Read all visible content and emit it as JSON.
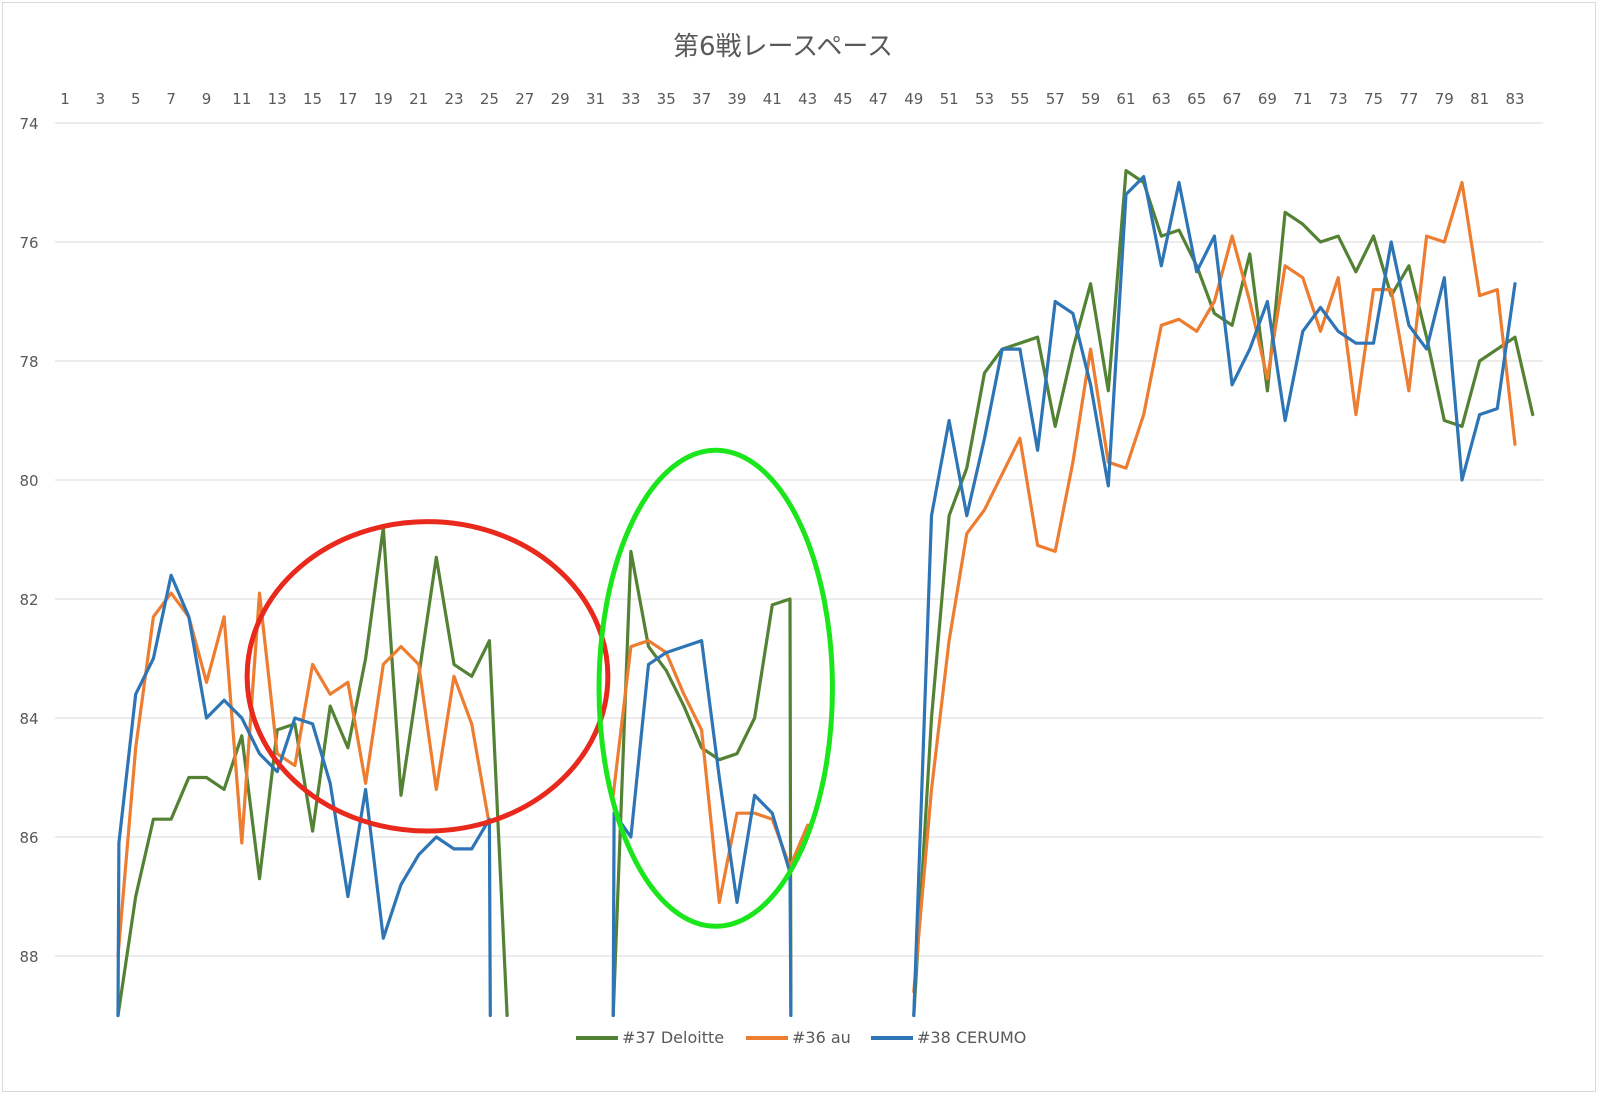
{
  "chart_data": {
    "type": "line",
    "title": "第6戦レースペース",
    "xlabel": "",
    "ylabel": "",
    "y_inverted": true,
    "x_axis_position": "top",
    "ylim": [
      74,
      89
    ],
    "yticks": [
      74,
      76,
      78,
      80,
      82,
      84,
      86,
      88
    ],
    "x": [
      1,
      84
    ],
    "xtick_labels": [
      "1",
      "3",
      "5",
      "7",
      "9",
      "11",
      "13",
      "15",
      "17",
      "19",
      "21",
      "23",
      "25",
      "27",
      "29",
      "31",
      "33",
      "35",
      "37",
      "39",
      "41",
      "43",
      "45",
      "47",
      "49",
      "51",
      "53",
      "55",
      "57",
      "59",
      "61",
      "63",
      "65",
      "67",
      "69",
      "71",
      "73",
      "75",
      "77",
      "79",
      "81",
      "83"
    ],
    "grid": true,
    "legend": "bottom",
    "series": [
      {
        "name": "#37 Deloitte",
        "color": "#548235",
        "segments": [
          [
            [
              4,
              89
            ],
            [
              5,
              87.0
            ],
            [
              6,
              85.7
            ],
            [
              7,
              85.7
            ],
            [
              8,
              85.0
            ],
            [
              9,
              85.0
            ],
            [
              10,
              85.2
            ],
            [
              11,
              84.3
            ],
            [
              12,
              86.7
            ],
            [
              13,
              84.2
            ],
            [
              14,
              84.1
            ],
            [
              15,
              85.9
            ],
            [
              16,
              83.8
            ],
            [
              17,
              84.5
            ],
            [
              18,
              83.0
            ],
            [
              19,
              80.8
            ],
            [
              20,
              85.3
            ],
            [
              21,
              83.3
            ],
            [
              22,
              81.3
            ],
            [
              23,
              83.1
            ],
            [
              24,
              83.3
            ],
            [
              25,
              82.7
            ],
            [
              26,
              89
            ]
          ],
          [
            [
              32,
              89
            ],
            [
              33,
              81.2
            ],
            [
              34,
              82.8
            ],
            [
              35,
              83.2
            ],
            [
              36,
              83.8
            ],
            [
              37,
              84.5
            ],
            [
              38,
              84.7
            ],
            [
              39,
              84.6
            ],
            [
              40,
              84.0
            ],
            [
              41,
              82.1
            ],
            [
              42,
              82.0
            ],
            [
              42.05,
              89
            ]
          ],
          [
            [
              49,
              89
            ],
            [
              50,
              84.0
            ],
            [
              51,
              80.6
            ],
            [
              52,
              79.8
            ],
            [
              53,
              78.2
            ],
            [
              54,
              77.8
            ],
            [
              55,
              77.7
            ],
            [
              56,
              77.6
            ],
            [
              57,
              79.1
            ],
            [
              58,
              77.8
            ],
            [
              59,
              76.7
            ],
            [
              60,
              78.5
            ],
            [
              61,
              74.8
            ],
            [
              62,
              75.0
            ],
            [
              63,
              75.9
            ],
            [
              64,
              75.8
            ],
            [
              65,
              76.4
            ],
            [
              66,
              77.2
            ],
            [
              67,
              77.4
            ],
            [
              68,
              76.2
            ],
            [
              69,
              78.5
            ],
            [
              70,
              75.5
            ],
            [
              71,
              75.7
            ],
            [
              72,
              76.0
            ],
            [
              73,
              75.9
            ],
            [
              74,
              76.5
            ],
            [
              75,
              75.9
            ],
            [
              76,
              76.9
            ],
            [
              77,
              76.4
            ],
            [
              78,
              77.6
            ],
            [
              79,
              79.0
            ],
            [
              80,
              79.1
            ],
            [
              81,
              78.0
            ],
            [
              82,
              77.8
            ],
            [
              83,
              77.6
            ],
            [
              84,
              78.9
            ]
          ]
        ]
      },
      {
        "name": "#36 au",
        "color": "#ed7d31",
        "segments": [
          [
            [
              4,
              88.0
            ],
            [
              5,
              84.5
            ],
            [
              6,
              82.3
            ],
            [
              7,
              81.9
            ],
            [
              8,
              82.3
            ],
            [
              9,
              83.4
            ],
            [
              10,
              82.3
            ],
            [
              11,
              86.1
            ],
            [
              12,
              81.9
            ],
            [
              13,
              84.6
            ],
            [
              14,
              84.8
            ],
            [
              15,
              83.1
            ],
            [
              16,
              83.6
            ],
            [
              17,
              83.4
            ],
            [
              18,
              85.1
            ],
            [
              19,
              83.1
            ],
            [
              20,
              82.8
            ],
            [
              21,
              83.1
            ],
            [
              22,
              85.2
            ],
            [
              23,
              83.3
            ],
            [
              24,
              84.1
            ],
            [
              25,
              85.8
            ]
          ],
          [
            [
              32,
              85.3
            ],
            [
              33,
              82.8
            ],
            [
              34,
              82.7
            ],
            [
              35,
              82.9
            ],
            [
              36,
              83.6
            ],
            [
              37,
              84.2
            ],
            [
              38,
              87.1
            ],
            [
              39,
              85.6
            ],
            [
              40,
              85.6
            ],
            [
              41,
              85.7
            ],
            [
              42,
              86.5
            ],
            [
              43,
              85.8
            ]
          ],
          [
            [
              49,
              88.6
            ],
            [
              50,
              85.2
            ],
            [
              51,
              82.7
            ],
            [
              52,
              80.9
            ],
            [
              53,
              80.5
            ],
            [
              54,
              79.9
            ],
            [
              55,
              79.3
            ],
            [
              56,
              81.1
            ],
            [
              57,
              81.2
            ],
            [
              58,
              79.7
            ],
            [
              59,
              77.8
            ],
            [
              60,
              79.7
            ],
            [
              61,
              79.8
            ],
            [
              62,
              78.9
            ],
            [
              63,
              77.4
            ],
            [
              64,
              77.3
            ],
            [
              65,
              77.5
            ],
            [
              66,
              77.0
            ],
            [
              67,
              75.9
            ],
            [
              68,
              77.0
            ],
            [
              69,
              78.3
            ],
            [
              70,
              76.4
            ],
            [
              71,
              76.6
            ],
            [
              72,
              77.5
            ],
            [
              73,
              76.6
            ],
            [
              74,
              78.9
            ],
            [
              75,
              76.8
            ],
            [
              76,
              76.8
            ],
            [
              77,
              78.5
            ],
            [
              78,
              75.9
            ],
            [
              79,
              76.0
            ],
            [
              80,
              75.0
            ],
            [
              81,
              76.9
            ],
            [
              82,
              76.8
            ],
            [
              83,
              79.4
            ]
          ]
        ]
      },
      {
        "name": "#38 CERUMO",
        "color": "#2e75b6",
        "segments": [
          [
            [
              4,
              89
            ],
            [
              4.05,
              86.1
            ],
            [
              5,
              83.6
            ],
            [
              6,
              83.0
            ],
            [
              7,
              81.6
            ],
            [
              8,
              82.3
            ],
            [
              9,
              84.0
            ],
            [
              10,
              83.7
            ],
            [
              11,
              84.0
            ],
            [
              12,
              84.6
            ],
            [
              13,
              84.9
            ],
            [
              14,
              84.0
            ],
            [
              15,
              84.1
            ],
            [
              16,
              85.1
            ],
            [
              17,
              87.0
            ],
            [
              18,
              85.2
            ],
            [
              19,
              87.7
            ],
            [
              20,
              86.8
            ],
            [
              21,
              86.3
            ],
            [
              22,
              86.0
            ],
            [
              23,
              86.2
            ],
            [
              24,
              86.2
            ],
            [
              25,
              85.7
            ],
            [
              25.05,
              89
            ]
          ],
          [
            [
              32,
              89
            ],
            [
              32.05,
              85.6
            ],
            [
              33,
              86.0
            ],
            [
              34,
              83.1
            ],
            [
              35,
              82.9
            ],
            [
              36,
              82.8
            ],
            [
              37,
              82.7
            ],
            [
              38,
              85.0
            ],
            [
              39,
              87.1
            ],
            [
              40,
              85.3
            ],
            [
              41,
              85.6
            ],
            [
              42,
              86.6
            ],
            [
              42.05,
              89
            ]
          ],
          [
            [
              49,
              89
            ],
            [
              50,
              80.6
            ],
            [
              51,
              79.0
            ],
            [
              52,
              80.6
            ],
            [
              53,
              79.3
            ],
            [
              54,
              77.8
            ],
            [
              55,
              77.8
            ],
            [
              56,
              79.5
            ],
            [
              57,
              77.0
            ],
            [
              58,
              77.2
            ],
            [
              59,
              78.4
            ],
            [
              60,
              80.1
            ],
            [
              61,
              75.2
            ],
            [
              62,
              74.9
            ],
            [
              63,
              76.4
            ],
            [
              64,
              75.0
            ],
            [
              65,
              76.5
            ],
            [
              66,
              75.9
            ],
            [
              67,
              78.4
            ],
            [
              68,
              77.8
            ],
            [
              69,
              77.0
            ],
            [
              70,
              79.0
            ],
            [
              71,
              77.5
            ],
            [
              72,
              77.1
            ],
            [
              73,
              77.5
            ],
            [
              74,
              77.7
            ],
            [
              75,
              77.7
            ],
            [
              76,
              76.0
            ],
            [
              77,
              77.4
            ],
            [
              78,
              77.8
            ],
            [
              79,
              76.6
            ],
            [
              80,
              80.0
            ],
            [
              81,
              78.9
            ],
            [
              82,
              78.8
            ],
            [
              83,
              76.7
            ]
          ]
        ]
      }
    ],
    "annotations": [
      {
        "shape": "ellipse",
        "color": "#e8291c",
        "center": [
          21.5,
          83.3
        ],
        "radius": [
          10.2,
          2.6
        ]
      },
      {
        "shape": "ellipse",
        "color": "#1be61b",
        "center": [
          37.8,
          83.5
        ],
        "radius": [
          6.6,
          4.0
        ]
      }
    ]
  }
}
